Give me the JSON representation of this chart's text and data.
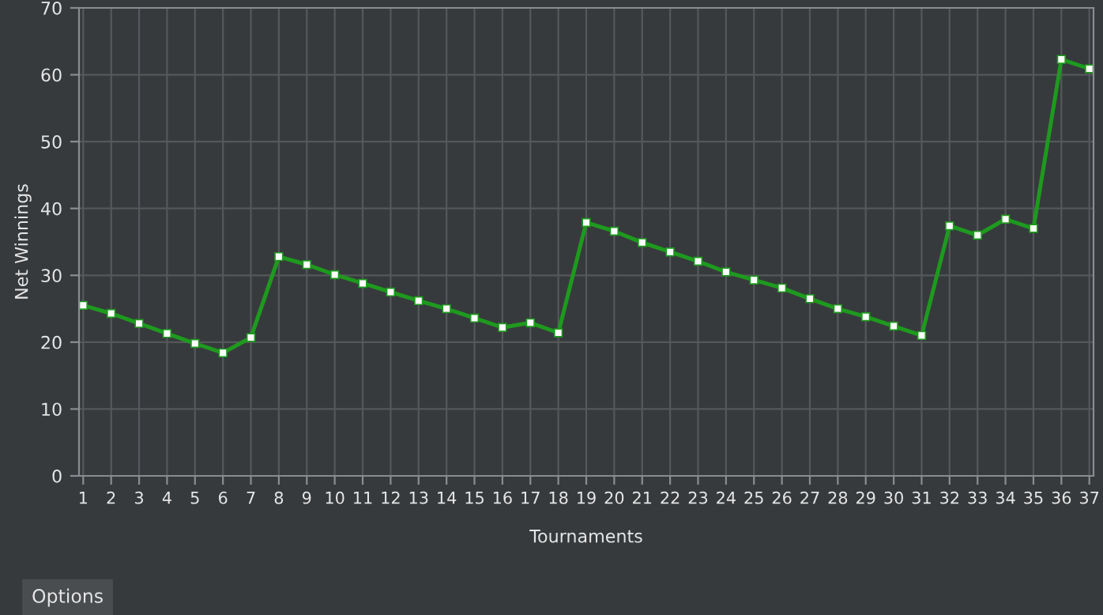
{
  "chart_data": {
    "type": "line",
    "xlabel": "Tournaments",
    "ylabel": "Net Winnings",
    "x": [
      1,
      2,
      3,
      4,
      5,
      6,
      7,
      8,
      9,
      10,
      11,
      12,
      13,
      14,
      15,
      16,
      17,
      18,
      19,
      20,
      21,
      22,
      23,
      24,
      25,
      26,
      27,
      28,
      29,
      30,
      31,
      32,
      33,
      34,
      35,
      36,
      37
    ],
    "series": [
      {
        "color": "#1e9a1e",
        "values": [
          25.5,
          24.3,
          22.8,
          21.3,
          19.8,
          18.4,
          20.7,
          32.8,
          31.6,
          30.1,
          28.8,
          27.5,
          26.2,
          25.0,
          23.6,
          22.2,
          22.9,
          21.4,
          37.9,
          36.6,
          34.9,
          33.5,
          32.1,
          30.5,
          29.3,
          28.1,
          26.5,
          25.0,
          23.8,
          22.4,
          21.0,
          37.4,
          36.0,
          38.4,
          37.0,
          62.3,
          60.9
        ]
      }
    ],
    "xlim": [
      0.85,
      37.15
    ],
    "xticks": [
      1,
      2,
      3,
      4,
      5,
      6,
      7,
      8,
      9,
      10,
      11,
      12,
      13,
      14,
      15,
      16,
      17,
      18,
      19,
      20,
      21,
      22,
      23,
      24,
      25,
      26,
      27,
      28,
      29,
      30,
      31,
      32,
      33,
      34,
      35,
      36,
      37
    ],
    "ylim": [
      0,
      70
    ],
    "yticks": [
      0,
      10,
      20,
      30,
      40,
      50,
      60,
      70
    ],
    "grid": true,
    "marker": "square",
    "line_style": "solid",
    "annotations": [
      "Options"
    ]
  }
}
